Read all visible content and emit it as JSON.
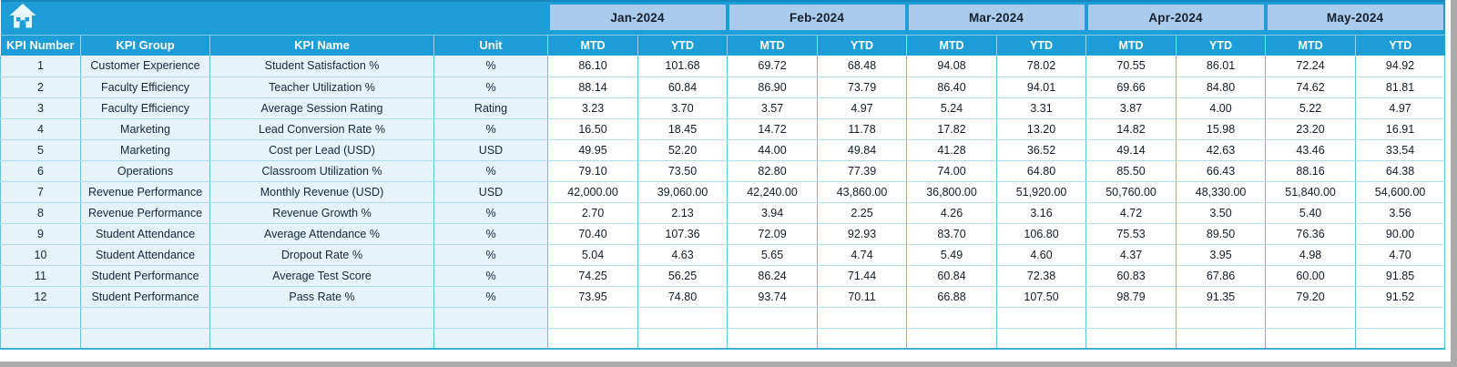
{
  "header": {
    "left_columns": [
      "KPI Number",
      "KPI Group",
      "KPI Name",
      "Unit"
    ],
    "months": [
      "Jan-2024",
      "Feb-2024",
      "Mar-2024",
      "Apr-2024",
      "May-2024"
    ],
    "sub_columns": [
      "MTD",
      "YTD"
    ]
  },
  "icons": {
    "home": "home-icon"
  },
  "colors": {
    "accent_cyan": "#1E9ED8",
    "month_band_blue": "#A9CBEC",
    "row_tint_blue": "#E7F3FA",
    "grid_horizontal": "#ABDEEF",
    "grid_vertical": "#5FC0E2"
  },
  "rows": [
    {
      "kpi_number": "1",
      "kpi_group": "Customer Experience",
      "kpi_name": "Student Satisfaction %",
      "unit": "%",
      "values": [
        "86.10",
        "101.68",
        "69.72",
        "68.48",
        "94.08",
        "78.02",
        "70.55",
        "86.01",
        "72.24",
        "94.92"
      ]
    },
    {
      "kpi_number": "2",
      "kpi_group": "Faculty Efficiency",
      "kpi_name": "Teacher Utilization %",
      "unit": "%",
      "values": [
        "88.14",
        "60.84",
        "86.90",
        "73.79",
        "86.40",
        "94.01",
        "69.66",
        "84.80",
        "74.62",
        "81.81"
      ]
    },
    {
      "kpi_number": "3",
      "kpi_group": "Faculty Efficiency",
      "kpi_name": "Average Session Rating",
      "unit": "Rating",
      "values": [
        "3.23",
        "3.70",
        "3.57",
        "4.97",
        "5.24",
        "3.31",
        "3.87",
        "4.00",
        "5.22",
        "4.97"
      ]
    },
    {
      "kpi_number": "4",
      "kpi_group": "Marketing",
      "kpi_name": "Lead Conversion Rate %",
      "unit": "%",
      "values": [
        "16.50",
        "18.45",
        "14.72",
        "11.78",
        "17.82",
        "13.20",
        "14.82",
        "15.98",
        "23.20",
        "16.91"
      ]
    },
    {
      "kpi_number": "5",
      "kpi_group": "Marketing",
      "kpi_name": "Cost per Lead (USD)",
      "unit": "USD",
      "values": [
        "49.95",
        "52.20",
        "44.00",
        "49.84",
        "41.28",
        "36.52",
        "49.14",
        "42.63",
        "43.46",
        "33.54"
      ]
    },
    {
      "kpi_number": "6",
      "kpi_group": "Operations",
      "kpi_name": "Classroom Utilization %",
      "unit": "%",
      "values": [
        "79.10",
        "73.50",
        "82.80",
        "77.39",
        "74.00",
        "64.80",
        "85.50",
        "66.43",
        "88.16",
        "64.38"
      ]
    },
    {
      "kpi_number": "7",
      "kpi_group": "Revenue Performance",
      "kpi_name": "Monthly Revenue (USD)",
      "unit": "USD",
      "values": [
        "42,000.00",
        "39,060.00",
        "42,240.00",
        "43,860.00",
        "36,800.00",
        "51,920.00",
        "50,760.00",
        "48,330.00",
        "51,840.00",
        "54,600.00"
      ]
    },
    {
      "kpi_number": "8",
      "kpi_group": "Revenue Performance",
      "kpi_name": "Revenue Growth %",
      "unit": "%",
      "values": [
        "2.70",
        "2.13",
        "3.94",
        "2.25",
        "4.26",
        "3.16",
        "4.72",
        "3.50",
        "5.40",
        "3.56"
      ]
    },
    {
      "kpi_number": "9",
      "kpi_group": "Student Attendance",
      "kpi_name": "Average Attendance %",
      "unit": "%",
      "values": [
        "70.40",
        "107.36",
        "72.09",
        "92.93",
        "83.70",
        "106.80",
        "75.53",
        "89.50",
        "76.36",
        "90.00"
      ]
    },
    {
      "kpi_number": "10",
      "kpi_group": "Student Attendance",
      "kpi_name": "Dropout Rate %",
      "unit": "%",
      "values": [
        "5.04",
        "4.63",
        "5.65",
        "4.74",
        "5.49",
        "4.60",
        "4.37",
        "3.95",
        "4.98",
        "4.70"
      ]
    },
    {
      "kpi_number": "11",
      "kpi_group": "Student Performance",
      "kpi_name": "Average Test Score",
      "unit": "%",
      "values": [
        "74.25",
        "56.25",
        "86.24",
        "71.44",
        "60.84",
        "72.38",
        "60.83",
        "67.86",
        "60.00",
        "91.85"
      ]
    },
    {
      "kpi_number": "12",
      "kpi_group": "Student Performance",
      "kpi_name": "Pass Rate %",
      "unit": "%",
      "values": [
        "73.95",
        "74.80",
        "93.74",
        "70.11",
        "66.88",
        "107.50",
        "98.79",
        "91.35",
        "79.20",
        "91.52"
      ]
    }
  ],
  "empty_rows": 2
}
